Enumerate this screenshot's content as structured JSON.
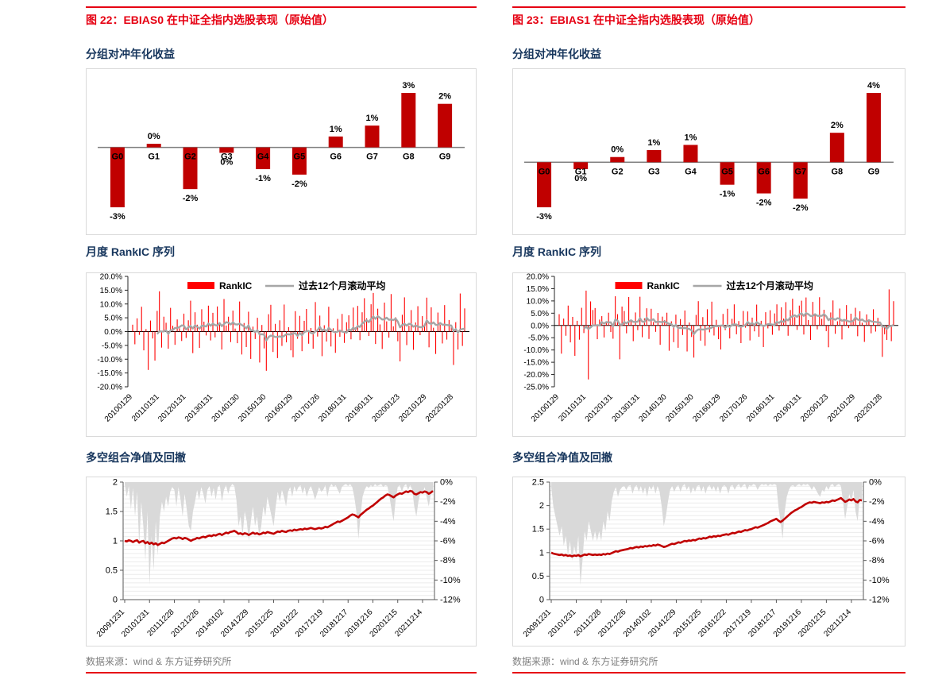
{
  "colors": {
    "accent_red": "#E60012",
    "bar_red": "#C00000",
    "series_red": "#FF0000",
    "rolling_gray": "#A6A6A6",
    "area_gray": "#D9D9D9",
    "navy": "#17365D",
    "source_gray": "#7F7F7F",
    "axis_gray": "#808080"
  },
  "columns": [
    {
      "figure_title": "图 22：EBIAS0 在中证全指内选股表现（原始值）",
      "source": "数据来源：wind & 东方证券研究所"
    },
    {
      "figure_title": "图 23：EBIAS1 在中证全指内选股表现（原始值）",
      "source": "数据来源：wind & 东方证券研究所"
    }
  ],
  "chart_data": [
    {
      "id": "fig22-group",
      "type": "bar",
      "title": "分组对冲年化收益",
      "categories": [
        "G0",
        "G1",
        "G2",
        "G3",
        "G4",
        "G5",
        "G6",
        "G7",
        "G8",
        "G9"
      ],
      "values": [
        -3.3,
        0.2,
        -2.3,
        -0.3,
        -1.2,
        -1.5,
        0.6,
        1.2,
        3.0,
        2.4
      ],
      "labels": [
        "-3%",
        "0%",
        "-2%",
        "0%",
        "-1%",
        "-2%",
        "1%",
        "1%",
        "3%",
        "2%"
      ],
      "grid": false,
      "ylabel": "",
      "xlabel": ""
    },
    {
      "id": "fig22-rankic",
      "type": "bar+line",
      "title": "月度 RankIC 序列",
      "legend": [
        "RankIC",
        "过去12个月滚动平均"
      ],
      "ylim": [
        -20,
        20
      ],
      "ytick_step": 5,
      "ytick_labels": [
        "20.0%",
        "15.0%",
        "10.0%",
        "5.0%",
        "0.0%",
        "-5.0%",
        "-10.0%",
        "-15.0%",
        "-20.0%"
      ],
      "x_tick_labels": [
        "20100129",
        "20110131",
        "20120131",
        "20130131",
        "20140130",
        "20150130",
        "20160129",
        "20170126",
        "20180131",
        "20190131",
        "20200123",
        "20210129",
        "20220128"
      ],
      "rolling_window": 12,
      "values": [
        2.5,
        -4.6,
        4.8,
        -1.2,
        9.0,
        -6.8,
        0.9,
        -13.9,
        4.0,
        -2.5,
        -10.5,
        7.5,
        14.6,
        -5.8,
        5.4,
        3.2,
        -6.2,
        8.6,
        2.1,
        -4.8,
        4.4,
        1.2,
        -3.4,
        6.5,
        -2.3,
        4.1,
        11.2,
        -7.8,
        7.0,
        2.5,
        -5.9,
        8.1,
        3.6,
        -1.4,
        9.4,
        -3.2,
        6.8,
        -2.1,
        9.1,
        3.3,
        -6.5,
        11.8,
        2.2,
        5.4,
        -3.8,
        7.6,
        1.1,
        -4.2,
        10.9,
        -8.3,
        3.1,
        -5.6,
        7.2,
        -9.9,
        1.8,
        -2.7,
        5.0,
        -11.2,
        2.4,
        -6.1,
        -14.2,
        6.3,
        9.7,
        -7.4,
        2.8,
        -9.6,
        4.1,
        -5.2,
        9.8,
        -3.9,
        1.6,
        -6.8,
        -9.3,
        7.4,
        -2.6,
        5.7,
        -7.1,
        3.9,
        8.2,
        -4.4,
        1.3,
        -6.2,
        10.7,
        -1.8,
        5.8,
        -8.9,
        2.3,
        -3.6,
        9.0,
        -5.4,
        1.2,
        -7.7,
        4.6,
        -1.9,
        6.4,
        -4.1,
        3.4,
        5.9,
        -2.8,
        8.7,
        1.5,
        9.3,
        -3.1,
        7.0,
        12.1,
        4.8,
        -1.6,
        9.9,
        14.0,
        -4.5,
        8.3,
        2.6,
        -6.3,
        10.5,
        3.7,
        -2.2,
        13.6,
        1.9,
        5.2,
        -3.5,
        -10.8,
        6.1,
        12.4,
        -4.9,
        2.1,
        7.8,
        -6.6,
        3.3,
        9.2,
        -1.3,
        5.6,
        2.8,
        12.3,
        -5.7,
        8.8,
        1.4,
        -8.1,
        6.9,
        2.5,
        -4.3,
        9.6,
        -2.9,
        4.2,
        1.8,
        -12.1,
        3.4,
        -6.5,
        13.8,
        -5.2,
        8.4
      ]
    },
    {
      "id": "fig22-nav",
      "type": "line+area",
      "title": "多空组合净值及回撤",
      "left_ylim": [
        0,
        2
      ],
      "left_tick_labels": [
        "2",
        "1.5",
        "1",
        "0.5",
        "0"
      ],
      "right_ylim": [
        0,
        -12
      ],
      "right_tick_labels": [
        "0%",
        "-2%",
        "-4%",
        "-6%",
        "-8%",
        "-10%",
        "-12%"
      ],
      "x_tick_labels": [
        "20091231",
        "20101231",
        "20111228",
        "20121226",
        "20140102",
        "20141229",
        "20151225",
        "20161222",
        "20171219",
        "20181217",
        "20191216",
        "20201215",
        "20211214"
      ],
      "nav": [
        1.0,
        0.99,
        1.01,
        1.0,
        0.98,
        1.0,
        1.01,
        0.97,
        0.99,
        1.0,
        0.96,
        0.98,
        0.95,
        0.97,
        0.94,
        0.96,
        0.93,
        0.95,
        0.97,
        0.96,
        0.98,
        1.0,
        1.02,
        1.04,
        1.05,
        1.04,
        1.06,
        1.05,
        1.03,
        1.05,
        1.04,
        1.02,
        1.0,
        1.02,
        1.03,
        1.05,
        1.04,
        1.06,
        1.07,
        1.06,
        1.08,
        1.09,
        1.08,
        1.1,
        1.09,
        1.11,
        1.12,
        1.1,
        1.12,
        1.14,
        1.13,
        1.15,
        1.16,
        1.17,
        1.15,
        1.12,
        1.13,
        1.11,
        1.13,
        1.12,
        1.1,
        1.12,
        1.14,
        1.12,
        1.13,
        1.11,
        1.12,
        1.14,
        1.13,
        1.15,
        1.14,
        1.13,
        1.12,
        1.14,
        1.16,
        1.15,
        1.17,
        1.16,
        1.15,
        1.17,
        1.18,
        1.17,
        1.19,
        1.18,
        1.19,
        1.2,
        1.19,
        1.21,
        1.2,
        1.21,
        1.22,
        1.21,
        1.2,
        1.21,
        1.22,
        1.21,
        1.22,
        1.24,
        1.23,
        1.25,
        1.27,
        1.29,
        1.31,
        1.33,
        1.32,
        1.34,
        1.36,
        1.38,
        1.4,
        1.43,
        1.45,
        1.44,
        1.42,
        1.4,
        1.44,
        1.47,
        1.5,
        1.53,
        1.55,
        1.58,
        1.6,
        1.63,
        1.66,
        1.69,
        1.72,
        1.74,
        1.77,
        1.79,
        1.78,
        1.76,
        1.74,
        1.77,
        1.79,
        1.81,
        1.8,
        1.82,
        1.84,
        1.83,
        1.85,
        1.84,
        1.8,
        1.79,
        1.81,
        1.83,
        1.82,
        1.84,
        1.83,
        1.8,
        1.82,
        1.85
      ],
      "drawdown": [
        -0.2,
        -1.5,
        -0.4,
        -2.8,
        -0.6,
        -3.5,
        -1.0,
        -6.5,
        -2.0,
        -4.5,
        -8.0,
        -3.0,
        -10.5,
        -5.5,
        -9.0,
        -4.0,
        -7.5,
        -3.5,
        -2.0,
        -3.0,
        -1.5,
        -2.5,
        -1.0,
        -0.5,
        -0.8,
        -2.5,
        -0.5,
        -1.8,
        -3.5,
        -1.2,
        -2.8,
        -4.5,
        -5.0,
        -3.0,
        -2.0,
        -0.8,
        -1.8,
        -0.5,
        -1.2,
        -2.2,
        -0.8,
        -0.4,
        -1.5,
        -0.6,
        -1.8,
        -0.5,
        -0.3,
        -2.0,
        -0.8,
        -0.3,
        -1.2,
        -0.5,
        -0.2,
        -0.4,
        -1.8,
        -4.5,
        -3.5,
        -5.5,
        -3.0,
        -4.0,
        -6.0,
        -4.0,
        -2.5,
        -4.5,
        -3.5,
        -5.5,
        -4.5,
        -2.5,
        -3.5,
        -1.5,
        -2.5,
        -3.5,
        -4.5,
        -2.5,
        -1.0,
        -2.0,
        -0.8,
        -1.5,
        -2.5,
        -1.0,
        -0.5,
        -1.5,
        -0.4,
        -1.0,
        -0.5,
        -0.3,
        -1.2,
        -0.5,
        -1.5,
        -0.8,
        -0.4,
        -1.0,
        -1.8,
        -1.2,
        -0.5,
        -1.0,
        -0.8,
        -0.3,
        -1.5,
        -0.5,
        -0.2,
        -0.5,
        -0.3,
        -0.8,
        -1.2,
        -0.5,
        -0.3,
        -0.2,
        -0.4,
        -0.2,
        -0.5,
        -1.5,
        -3.0,
        -5.8,
        -3.5,
        -1.5,
        -0.8,
        -0.4,
        -0.6,
        -0.3,
        -0.5,
        -0.2,
        -0.4,
        -0.3,
        -0.2,
        -0.5,
        -0.3,
        -0.4,
        -1.5,
        -2.8,
        -4.0,
        -1.8,
        -0.5,
        -0.3,
        -1.0,
        -0.4,
        -0.2,
        -0.8,
        -0.3,
        -0.8,
        -2.5,
        -3.5,
        -2.0,
        -1.0,
        -1.2,
        -0.5,
        -1.5,
        -2.5,
        -1.2,
        -0.8
      ]
    },
    {
      "id": "fig23-group",
      "type": "bar",
      "title": "分组对冲年化收益",
      "categories": [
        "G0",
        "G1",
        "G2",
        "G3",
        "G4",
        "G5",
        "G6",
        "G7",
        "G8",
        "G9"
      ],
      "values": [
        -2.6,
        -0.4,
        0.3,
        0.7,
        1.0,
        -1.3,
        -1.8,
        -2.1,
        1.7,
        4.0
      ],
      "labels": [
        "-3%",
        "0%",
        "0%",
        "1%",
        "1%",
        "-1%",
        "-2%",
        "-2%",
        "2%",
        "4%"
      ],
      "grid": false,
      "ylabel": "",
      "xlabel": ""
    },
    {
      "id": "fig23-rankic",
      "type": "bar+line",
      "title": "月度 RankIC 序列",
      "legend": [
        "RankIC",
        "过去12个月滚动平均"
      ],
      "ylim": [
        -25,
        20
      ],
      "ytick_step": 5,
      "ytick_labels": [
        "20.0%",
        "15.0%",
        "10.0%",
        "5.0%",
        "0.0%",
        "-5.0%",
        "-10.0%",
        "-15.0%",
        "-20.0%",
        "-25.0%"
      ],
      "x_tick_labels": [
        "20100129",
        "20110131",
        "20120131",
        "20130131",
        "20140130",
        "20150130",
        "20160129",
        "20170126",
        "20180131",
        "20190131",
        "20200123",
        "20210129",
        "20220128"
      ],
      "rolling_window": 12,
      "values": [
        4.6,
        -11.5,
        2.8,
        -4.2,
        8.1,
        -6.9,
        3.5,
        -12.4,
        1.9,
        -5.8,
        7.2,
        -3.1,
        14.2,
        -22.0,
        9.8,
        6.3,
        7.1,
        -5.6,
        2.4,
        3.8,
        -4.9,
        1.6,
        5.2,
        -2.7,
        -5.4,
        11.9,
        4.6,
        -13.8,
        7.7,
        5.9,
        -3.2,
        11.6,
        2.1,
        -6.4,
        5.3,
        -1.9,
        11.7,
        -4.8,
        2.9,
        7.0,
        -5.5,
        6.8,
        1.4,
        -2.6,
        5.1,
        -7.9,
        3.6,
        2.2,
        5.2,
        -10.3,
        1.7,
        -6.8,
        4.4,
        -9.1,
        2.6,
        -3.9,
        6.1,
        -10.6,
        1.2,
        -4.7,
        -13.1,
        4.3,
        9.9,
        -6.2,
        3.4,
        -8.3,
        6.6,
        -2.8,
        9.7,
        -4.1,
        2.3,
        -5.6,
        -9.8,
        4.7,
        -1.9,
        6.8,
        -5.3,
        2.7,
        8.6,
        -3.6,
        1.8,
        -7.2,
        5.9,
        -0.9,
        5.7,
        -6.1,
        3.2,
        -2.4,
        8.5,
        -4.6,
        1.9,
        -8.8,
        5.4,
        -1.2,
        6.2,
        -3.8,
        4.9,
        8.6,
        -2.1,
        7.4,
        2.8,
        9.5,
        -4.2,
        6.3,
        10.9,
        3.4,
        -1.8,
        8.1,
        10.1,
        -3.7,
        11.4,
        2.2,
        -5.9,
        9.6,
        4.3,
        -1.6,
        11.5,
        2.7,
        6.4,
        -2.3,
        -8.9,
        5.3,
        10.2,
        -3.4,
        1.7,
        6.9,
        -5.7,
        2.6,
        8.3,
        -1.1,
        4.8,
        2.1,
        7.2,
        -4.4,
        5.8,
        1.1,
        -6.7,
        4.5,
        1.8,
        -3.2,
        6.6,
        -2.5,
        3.1,
        0.9,
        -12.8,
        -3.6,
        -5.9,
        14.7,
        -6.4,
        9.9
      ]
    },
    {
      "id": "fig23-nav",
      "type": "line+area",
      "title": "多空组合净值及回撤",
      "left_ylim": [
        0,
        2.5
      ],
      "left_tick_labels": [
        "2.5",
        "2",
        "1.5",
        "1",
        "0.5",
        "0"
      ],
      "right_ylim": [
        0,
        -12
      ],
      "right_tick_labels": [
        "0%",
        "-2%",
        "-4%",
        "-6%",
        "-8%",
        "-10%",
        "-12%"
      ],
      "x_tick_labels": [
        "20091231",
        "20101231",
        "20111228",
        "20121226",
        "20140102",
        "20141229",
        "20151225",
        "20161222",
        "20171219",
        "20181217",
        "20191216",
        "20201215",
        "20211214"
      ],
      "nav": [
        1.0,
        0.98,
        0.97,
        0.96,
        0.95,
        0.96,
        0.94,
        0.95,
        0.93,
        0.94,
        0.92,
        0.94,
        0.93,
        0.95,
        0.92,
        0.94,
        0.96,
        0.95,
        0.97,
        0.96,
        0.95,
        0.96,
        0.95,
        0.96,
        0.95,
        0.97,
        0.96,
        0.98,
        0.97,
        0.99,
        1.01,
        1.03,
        1.02,
        1.04,
        1.05,
        1.06,
        1.07,
        1.08,
        1.1,
        1.09,
        1.11,
        1.12,
        1.11,
        1.13,
        1.12,
        1.14,
        1.13,
        1.15,
        1.14,
        1.16,
        1.15,
        1.17,
        1.16,
        1.14,
        1.12,
        1.13,
        1.15,
        1.17,
        1.19,
        1.18,
        1.2,
        1.22,
        1.21,
        1.23,
        1.25,
        1.24,
        1.26,
        1.25,
        1.27,
        1.26,
        1.28,
        1.3,
        1.29,
        1.31,
        1.3,
        1.32,
        1.34,
        1.33,
        1.35,
        1.34,
        1.36,
        1.35,
        1.37,
        1.38,
        1.39,
        1.38,
        1.4,
        1.42,
        1.41,
        1.43,
        1.45,
        1.44,
        1.46,
        1.48,
        1.47,
        1.49,
        1.5,
        1.52,
        1.54,
        1.53,
        1.55,
        1.57,
        1.59,
        1.61,
        1.63,
        1.66,
        1.68,
        1.7,
        1.72,
        1.68,
        1.65,
        1.68,
        1.72,
        1.76,
        1.8,
        1.84,
        1.87,
        1.9,
        1.92,
        1.95,
        1.97,
        2.0,
        2.03,
        2.05,
        2.07,
        2.06,
        2.08,
        2.07,
        2.06,
        2.05,
        2.07,
        2.06,
        2.08,
        2.07,
        2.09,
        2.11,
        2.1,
        2.12,
        2.14,
        2.16,
        2.12,
        2.08,
        2.1,
        2.13,
        2.11,
        2.14,
        2.09,
        2.07,
        2.12,
        2.11
      ],
      "drawdown": [
        -0.5,
        -2.5,
        -3.5,
        -4.5,
        -5.5,
        -4.5,
        -6.5,
        -5.5,
        -7.5,
        -6.0,
        -8.0,
        -6.5,
        -7.5,
        -5.5,
        -10.5,
        -8.0,
        -5.0,
        -6.0,
        -4.0,
        -5.0,
        -6.0,
        -5.0,
        -6.0,
        -5.0,
        -6.0,
        -4.0,
        -5.0,
        -3.0,
        -4.0,
        -2.0,
        -1.0,
        -0.5,
        -1.5,
        -0.8,
        -0.5,
        -0.4,
        -0.8,
        -0.4,
        -0.3,
        -1.2,
        -0.5,
        -0.3,
        -1.0,
        -0.4,
        -1.2,
        -0.5,
        -1.5,
        -0.4,
        -0.8,
        -0.3,
        -1.2,
        -0.4,
        -1.0,
        -2.5,
        -4.5,
        -3.5,
        -2.0,
        -0.8,
        -0.4,
        -1.0,
        -0.5,
        -0.3,
        -1.0,
        -0.4,
        -0.2,
        -0.8,
        -0.4,
        -1.2,
        -0.5,
        -1.0,
        -0.4,
        -0.3,
        -1.0,
        -0.4,
        -1.2,
        -0.5,
        -0.3,
        -0.8,
        -0.4,
        -1.0,
        -0.4,
        -1.2,
        -0.5,
        -0.3,
        -0.5,
        -1.2,
        -0.4,
        -0.3,
        -0.8,
        -0.4,
        -0.2,
        -0.6,
        -0.3,
        -0.2,
        -0.8,
        -0.3,
        -0.4,
        -0.2,
        -0.3,
        -0.8,
        -0.4,
        -0.2,
        -0.3,
        -0.2,
        -0.4,
        -0.2,
        -0.3,
        -0.2,
        -0.3,
        -2.5,
        -4.0,
        -5.8,
        -3.0,
        -1.5,
        -0.8,
        -0.4,
        -0.3,
        -0.5,
        -0.3,
        -0.2,
        -0.4,
        -0.2,
        -0.3,
        -0.2,
        -0.4,
        -0.8,
        -0.4,
        -0.8,
        -1.2,
        -1.5,
        -0.8,
        -1.0,
        -0.4,
        -0.8,
        -0.3,
        -0.2,
        -0.5,
        -0.3,
        -0.2,
        -0.4,
        -2.0,
        -3.8,
        -2.5,
        -1.2,
        -2.0,
        -0.8,
        -3.0,
        -4.0,
        -1.5,
        -2.0
      ]
    }
  ]
}
